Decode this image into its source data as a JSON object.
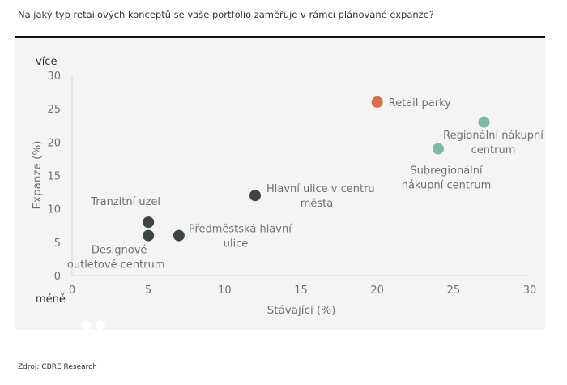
{
  "title": "Na jaký typ retailových konceptů se vaše portfolio zaměřuje v rámci plánované expanze?",
  "source": "Zdroj: CBRE Research",
  "chart_data": {
    "type": "scatter",
    "xlabel": "Stávající (%)",
    "ylabel": "Expanze (%)",
    "y_top_label": "více",
    "y_bottom_label": "méně",
    "xlim": [
      0,
      30
    ],
    "ylim": [
      0,
      30
    ],
    "xticks": [
      0,
      5,
      10,
      15,
      20,
      25,
      30
    ],
    "yticks": [
      0,
      5,
      10,
      15,
      20,
      25,
      30
    ],
    "grid": false,
    "points": [
      {
        "label": "Retail parky",
        "x": 20,
        "y": 26,
        "color": "#d2704f"
      },
      {
        "label": "Regionální nákupní centrum",
        "x": 27,
        "y": 23,
        "color": "#7fb8a6"
      },
      {
        "label": "Subregionální nákupní centrum",
        "x": 24,
        "y": 19,
        "color": "#7fb8a6"
      },
      {
        "label": "Hlavní ulice v centru města",
        "x": 12,
        "y": 12,
        "color": "#3b4548"
      },
      {
        "label": "Tranzitní uzel",
        "x": 5,
        "y": 8,
        "color": "#3b4548"
      },
      {
        "label": "Designové outletové centrum",
        "x": 5,
        "y": 6,
        "color": "#3b4548"
      },
      {
        "label": "Předměstská hlavní ulice",
        "x": 7,
        "y": 6,
        "color": "#3b4548"
      }
    ]
  }
}
